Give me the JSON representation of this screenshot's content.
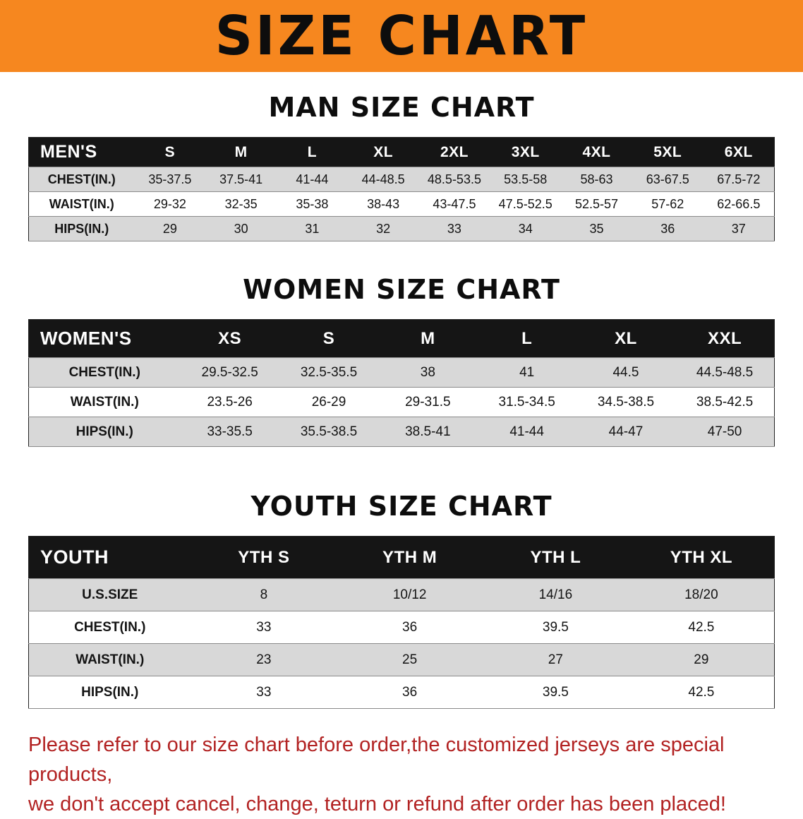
{
  "banner": {
    "title": "SIZE CHART"
  },
  "sections": [
    {
      "heading": "MAN SIZE CHART",
      "table": {
        "header": [
          "MEN'S",
          "S",
          "M",
          "L",
          "XL",
          "2XL",
          "3XL",
          "4XL",
          "5XL",
          "6XL"
        ],
        "rows": [
          [
            "CHEST(IN.)",
            "35-37.5",
            "37.5-41",
            "41-44",
            "44-48.5",
            "48.5-53.5",
            "53.5-58",
            "58-63",
            "63-67.5",
            "67.5-72"
          ],
          [
            "WAIST(IN.)",
            "29-32",
            "32-35",
            "35-38",
            "38-43",
            "43-47.5",
            "47.5-52.5",
            "52.5-57",
            "57-62",
            "62-66.5"
          ],
          [
            "HIPS(IN.)",
            "29",
            "30",
            "31",
            "32",
            "33",
            "34",
            "35",
            "36",
            "37"
          ]
        ]
      }
    },
    {
      "heading": "WOMEN SIZE CHART",
      "table": {
        "header": [
          "WOMEN'S",
          "XS",
          "S",
          "M",
          "L",
          "XL",
          "XXL"
        ],
        "rows": [
          [
            "CHEST(IN.)",
            "29.5-32.5",
            "32.5-35.5",
            "38",
            "41",
            "44.5",
            "44.5-48.5"
          ],
          [
            "WAIST(IN.)",
            "23.5-26",
            "26-29",
            "29-31.5",
            "31.5-34.5",
            "34.5-38.5",
            "38.5-42.5"
          ],
          [
            "HIPS(IN.)",
            "33-35.5",
            "35.5-38.5",
            "38.5-41",
            "41-44",
            "44-47",
            "47-50"
          ]
        ]
      }
    },
    {
      "heading": "YOUTH SIZE CHART",
      "table": {
        "header": [
          "YOUTH",
          "YTH S",
          "YTH M",
          "YTH L",
          "YTH XL"
        ],
        "rows": [
          [
            "U.S.SIZE",
            "8",
            "10/12",
            "14/16",
            "18/20"
          ],
          [
            "CHEST(IN.)",
            "33",
            "36",
            "39.5",
            "42.5"
          ],
          [
            "WAIST(IN.)",
            "23",
            "25",
            "27",
            "29"
          ],
          [
            "HIPS(IN.)",
            "33",
            "36",
            "39.5",
            "42.5"
          ]
        ]
      }
    }
  ],
  "footer": {
    "line1": "Please refer to our size chart before order,the customized jerseys are special products,",
    "line2": "we don't accept cancel, change, teturn or refund after order has been placed!"
  },
  "colors": {
    "banner_bg": "#F6871F",
    "table_header_bg": "#151515",
    "row_stripe": "#D8D8D8",
    "notice_text": "#B22222"
  }
}
